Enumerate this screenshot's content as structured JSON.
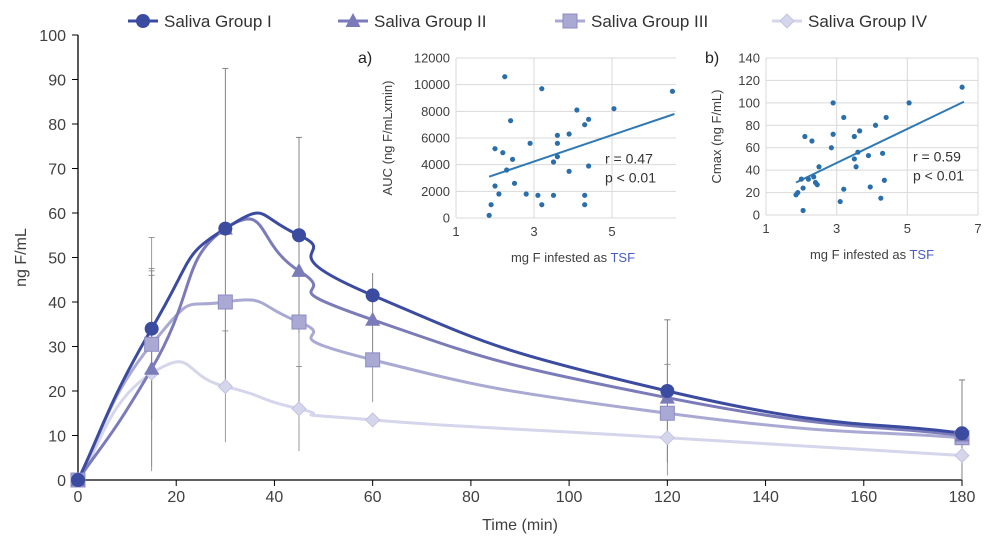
{
  "chart_data": [
    {
      "type": "line",
      "xlabel": "Time (min)",
      "ylabel": "ng F/mL",
      "xlim": [
        0,
        180
      ],
      "ylim": [
        0,
        100
      ],
      "xticks": [
        0,
        20,
        40,
        60,
        80,
        100,
        120,
        140,
        160,
        180
      ],
      "yticks": [
        0,
        10,
        20,
        30,
        40,
        50,
        60,
        70,
        80,
        90,
        100
      ],
      "grid": false,
      "legend_position": "top",
      "x": [
        0,
        15,
        30,
        45,
        60,
        120,
        180
      ],
      "series": [
        {
          "name": "Saliva Group I",
          "color": "#3b4ba0",
          "marker": "circle",
          "values": [
            0,
            34,
            56.5,
            55,
            41.5,
            20,
            10.5
          ],
          "err_upper": [
            0,
            54.5,
            92.5,
            77,
            54.5,
            36,
            22.5
          ]
        },
        {
          "name": "Saliva Group II",
          "color": "#7a7bb8",
          "marker": "triangle",
          "values": [
            0,
            25,
            56.5,
            47,
            36,
            18.5,
            10
          ],
          "err_upper": [
            0,
            47,
            92.5,
            77,
            54.5,
            36,
            22.5
          ]
        },
        {
          "name": "Saliva Group III",
          "color": "#a9a9d4",
          "marker": "square",
          "values": [
            0,
            30.5,
            40,
            35.5,
            27,
            15,
            9.5
          ],
          "err_upper": [
            0,
            47.5,
            33.5,
            25.5,
            28,
            26,
            22.5
          ]
        },
        {
          "name": "Saliva Group IV",
          "color": "#d5d5ec",
          "marker": "diamond",
          "values": [
            0,
            24,
            21,
            16,
            13.5,
            9.5,
            5.5
          ],
          "err_upper": [
            0,
            46,
            33.5,
            25.5,
            13.5,
            9.5,
            5.5
          ]
        }
      ]
    },
    {
      "type": "scatter",
      "panel_label": "a)",
      "xlabel": "mg F infested as TSF",
      "xlabel_prefix": "mg F infested as ",
      "xlabel_highlight": "TSF",
      "ylabel": "AUC (ng F/mLxmin)",
      "xlim": [
        1,
        7
      ],
      "ylim": [
        0,
        12000
      ],
      "xticks": [
        1,
        3,
        5,
        7
      ],
      "yticks": [
        0,
        2000,
        4000,
        6000,
        8000,
        10000,
        12000
      ],
      "points": [
        [
          1.85,
          200
        ],
        [
          1.9,
          1000
        ],
        [
          2.0,
          2400
        ],
        [
          2.0,
          5200
        ],
        [
          2.1,
          1800
        ],
        [
          2.2,
          4900
        ],
        [
          2.25,
          10600
        ],
        [
          2.3,
          3600
        ],
        [
          2.4,
          7300
        ],
        [
          2.45,
          4400
        ],
        [
          2.5,
          2600
        ],
        [
          2.8,
          1800
        ],
        [
          2.9,
          5600
        ],
        [
          3.1,
          1700
        ],
        [
          3.2,
          9700
        ],
        [
          3.2,
          1000
        ],
        [
          3.5,
          1700
        ],
        [
          3.5,
          4200
        ],
        [
          3.6,
          6200
        ],
        [
          3.6,
          5600
        ],
        [
          3.6,
          4600
        ],
        [
          3.9,
          6300
        ],
        [
          3.9,
          3500
        ],
        [
          4.1,
          8100
        ],
        [
          4.3,
          1000
        ],
        [
          4.3,
          1700
        ],
        [
          4.3,
          7000
        ],
        [
          4.4,
          7400
        ],
        [
          4.4,
          3900
        ],
        [
          5.05,
          8200
        ],
        [
          6.55,
          9500
        ]
      ],
      "trendline": {
        "x": [
          1.85,
          6.6
        ],
        "y": [
          3100,
          7800
        ]
      },
      "stats": [
        "r = 0.47",
        "p < 0.01"
      ]
    },
    {
      "type": "scatter",
      "panel_label": "b)",
      "xlabel": "mg F infested as TSF",
      "xlabel_prefix": "mg F infested as ",
      "xlabel_highlight": "TSF",
      "ylabel": "Cmax (ng F/mL)",
      "xlim": [
        1,
        7
      ],
      "ylim": [
        0,
        140
      ],
      "xticks": [
        1,
        3,
        5,
        7
      ],
      "yticks": [
        0,
        20,
        40,
        60,
        80,
        100,
        120,
        140
      ],
      "points": [
        [
          1.85,
          18
        ],
        [
          1.9,
          20
        ],
        [
          2.0,
          32
        ],
        [
          2.05,
          24
        ],
        [
          2.05,
          4
        ],
        [
          2.1,
          70
        ],
        [
          2.2,
          32
        ],
        [
          2.3,
          66
        ],
        [
          2.35,
          34
        ],
        [
          2.4,
          29
        ],
        [
          2.45,
          27
        ],
        [
          2.5,
          43
        ],
        [
          2.85,
          60
        ],
        [
          2.9,
          72
        ],
        [
          2.9,
          100
        ],
        [
          3.1,
          12
        ],
        [
          3.2,
          23
        ],
        [
          3.2,
          87
        ],
        [
          3.5,
          50
        ],
        [
          3.5,
          70
        ],
        [
          3.55,
          43
        ],
        [
          3.6,
          56
        ],
        [
          3.65,
          75
        ],
        [
          3.9,
          53
        ],
        [
          3.95,
          25
        ],
        [
          4.1,
          80
        ],
        [
          4.25,
          15
        ],
        [
          4.3,
          55
        ],
        [
          4.35,
          31
        ],
        [
          4.4,
          87
        ],
        [
          5.05,
          100
        ],
        [
          6.55,
          114
        ]
      ],
      "trendline": {
        "x": [
          1.85,
          6.6
        ],
        "y": [
          29,
          101
        ]
      },
      "stats": [
        "r = 0.59",
        "p < 0.01"
      ]
    }
  ],
  "colors": {
    "trendline": "#2f79b5",
    "scatter_point": "#2a6faa",
    "highlight": "#4a5cc4",
    "axis": "#000000",
    "error_bar": "#808080"
  }
}
